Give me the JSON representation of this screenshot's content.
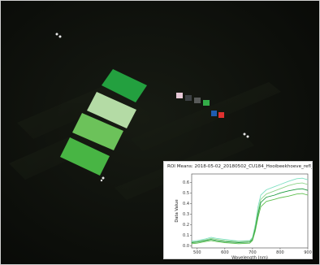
{
  "scene": {
    "background": "#0b0d09",
    "panels": [
      {
        "name": "green-panel-1",
        "color": "#23a03f"
      },
      {
        "name": "green-panel-2",
        "color": "#b4dba5"
      },
      {
        "name": "green-panel-3",
        "color": "#6cc25a"
      },
      {
        "name": "green-panel-4",
        "color": "#48b544"
      }
    ],
    "color_chart_swatches": [
      "#e6c8d6",
      "#3c4043",
      "#585a59",
      "#33ac48",
      "#1e5cb0",
      "#e0312f"
    ]
  },
  "chart_data": {
    "type": "line",
    "title": "ROI Means: 2018-05-02_20180502_CU184_Hooibeekhoeve_refl_95...",
    "xlabel": "Wavelength (nm)",
    "ylabel": "Data Value",
    "xlim": [
      480,
      900
    ],
    "ylim": [
      -0.02,
      0.68
    ],
    "xticks": [
      500,
      600,
      700,
      800,
      900
    ],
    "yticks": [
      0.0,
      0.1,
      0.2,
      0.3,
      0.4,
      0.5,
      0.6
    ],
    "xtick_labels": [
      "500",
      "600",
      "700",
      "800",
      "900"
    ],
    "ytick_labels": [
      "0.0",
      "0.1",
      "0.2",
      "0.3",
      "0.4",
      "0.5",
      "0.6"
    ],
    "series": [
      {
        "color": "#7fe0c2",
        "x": [
          480,
          500,
          530,
          550,
          570,
          600,
          650,
          690,
          700,
          710,
          720,
          730,
          750,
          780,
          800,
          830,
          860,
          880,
          900
        ],
        "y": [
          0.045,
          0.05,
          0.065,
          0.08,
          0.07,
          0.06,
          0.045,
          0.05,
          0.08,
          0.2,
          0.37,
          0.48,
          0.53,
          0.56,
          0.58,
          0.61,
          0.635,
          0.64,
          0.625
        ]
      },
      {
        "color": "#8fd48a",
        "x": [
          480,
          500,
          530,
          550,
          570,
          600,
          650,
          690,
          700,
          710,
          720,
          730,
          750,
          780,
          800,
          830,
          860,
          880,
          900
        ],
        "y": [
          0.035,
          0.04,
          0.055,
          0.07,
          0.06,
          0.05,
          0.04,
          0.045,
          0.07,
          0.18,
          0.33,
          0.44,
          0.49,
          0.52,
          0.54,
          0.57,
          0.59,
          0.595,
          0.58
        ]
      },
      {
        "color": "#1a9a3c",
        "x": [
          480,
          500,
          530,
          550,
          570,
          600,
          650,
          690,
          700,
          710,
          720,
          730,
          750,
          780,
          800,
          830,
          860,
          880,
          900
        ],
        "y": [
          0.03,
          0.035,
          0.05,
          0.06,
          0.05,
          0.04,
          0.03,
          0.035,
          0.06,
          0.16,
          0.3,
          0.41,
          0.46,
          0.48,
          0.5,
          0.52,
          0.535,
          0.54,
          0.525
        ]
      },
      {
        "color": "#5fbf4f",
        "x": [
          480,
          500,
          530,
          550,
          570,
          600,
          650,
          690,
          700,
          710,
          720,
          730,
          750,
          780,
          800,
          830,
          860,
          880,
          900
        ],
        "y": [
          0.02,
          0.025,
          0.04,
          0.05,
          0.04,
          0.03,
          0.02,
          0.025,
          0.05,
          0.14,
          0.27,
          0.37,
          0.42,
          0.44,
          0.455,
          0.47,
          0.49,
          0.495,
          0.48
        ]
      }
    ]
  }
}
